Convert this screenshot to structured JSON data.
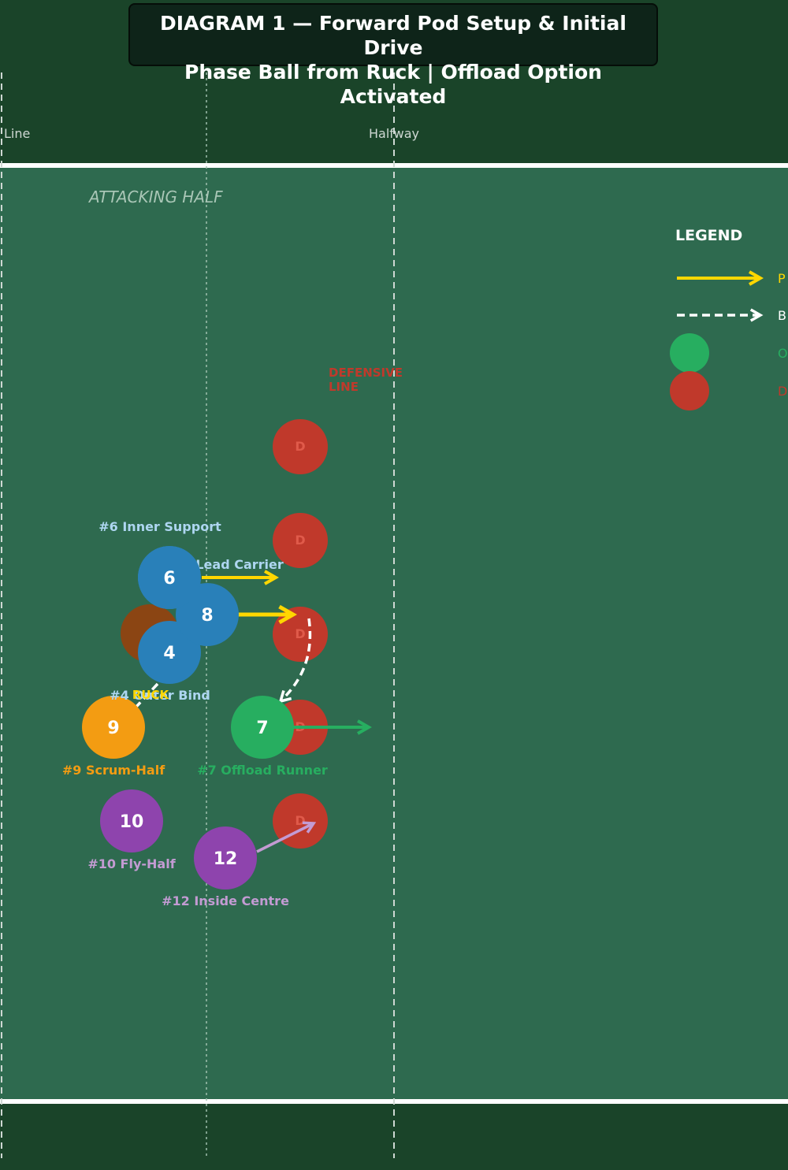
{
  "title": {
    "line1": "DIAGRAM 1 — Forward Pod Setup & Initial Drive",
    "line2": "Phase Ball from Ruck | Offload Option Activated"
  },
  "field": {
    "try_line_label": "Line",
    "halfway_label": "Halfway",
    "attacking_half_label": "ATTACKING HALF",
    "defensive_line_label_1": "DEFENSIVE",
    "defensive_line_label_2": "LINE",
    "ruck_label": "RUCK"
  },
  "colors": {
    "pitch": "#2e6a4f",
    "outside": "#1a4429",
    "forward": "#2980b9",
    "scrum_half": "#f39c12",
    "back": "#8e44ad",
    "offload": "#27ae60",
    "defender": "#c0392b",
    "ruck": "#8b4513",
    "pass_arrow": "#ffd700"
  },
  "players": [
    {
      "id": "6",
      "number": "6",
      "label": "#6 Inner Support",
      "role": "forward"
    },
    {
      "id": "8",
      "number": "8",
      "label": "#8 Lead Carrier",
      "role": "forward"
    },
    {
      "id": "4",
      "number": "4",
      "label": "#4 Outer Bind",
      "role": "forward"
    },
    {
      "id": "9",
      "number": "9",
      "label": "#9 Scrum-Half",
      "role": "scrum_half"
    },
    {
      "id": "7",
      "number": "7",
      "label": "#7 Offload Runner",
      "role": "offload"
    },
    {
      "id": "10",
      "number": "10",
      "label": "#10 Fly-Half",
      "role": "back"
    },
    {
      "id": "12",
      "number": "12",
      "label": "#12 Inside Centre",
      "role": "back"
    }
  ],
  "defender_marker": "D",
  "legend": {
    "title": "LEGEND",
    "items": [
      {
        "label": "P",
        "kind": "solid-arrow"
      },
      {
        "label": "B",
        "kind": "dashed-arrow"
      },
      {
        "label": "O",
        "kind": "green-circle"
      },
      {
        "label": "D",
        "kind": "red-circle"
      }
    ]
  }
}
